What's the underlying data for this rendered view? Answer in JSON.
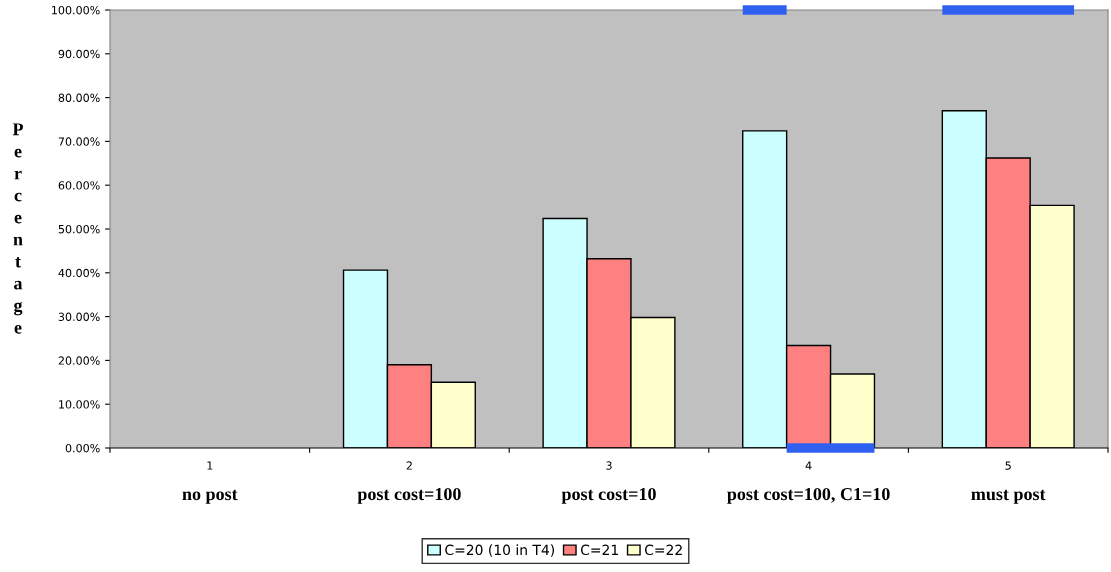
{
  "chart_data": {
    "type": "bar",
    "ylabel": "Percentage",
    "categories": [
      "1\nno post",
      "2\npost cost=100",
      "3\npost cost=10",
      "4\npost cost=100, C1=10",
      "5\nmust post"
    ],
    "series": [
      {
        "name": "C=20 (10 in T4)",
        "color": "#ccffff",
        "values": [
          null,
          40.6,
          52.4,
          72.4,
          77.0
        ]
      },
      {
        "name": "C=21",
        "color": "#ff8080",
        "values": [
          null,
          19.0,
          43.2,
          23.4,
          66.2
        ]
      },
      {
        "name": "C=22",
        "color": "#ffffcc",
        "values": [
          null,
          15.0,
          29.8,
          16.9,
          55.4
        ]
      }
    ],
    "ylim": [
      0,
      100
    ],
    "yticks": [
      {
        "value": 0,
        "label": "0.00%"
      },
      {
        "value": 10,
        "label": "10.00%"
      },
      {
        "value": 20,
        "label": "20.00%"
      },
      {
        "value": 30,
        "label": "30.00%"
      },
      {
        "value": 40,
        "label": "40.00%"
      },
      {
        "value": 50,
        "label": "50.00%"
      },
      {
        "value": 60,
        "label": "60.00%"
      },
      {
        "value": 70,
        "label": "70.00%"
      },
      {
        "value": 80,
        "label": "80.00%"
      },
      {
        "value": 90,
        "label": "90.00%"
      },
      {
        "value": 100,
        "label": "100.00%"
      }
    ],
    "grid": false,
    "legend": "bottom"
  }
}
